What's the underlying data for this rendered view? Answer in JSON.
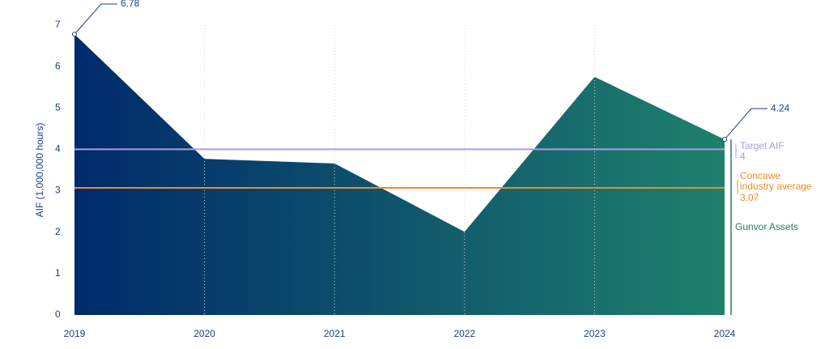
{
  "chart_data": {
    "type": "area",
    "ylabel": "AIF (1,000,000 hours)",
    "categories": [
      "2019",
      "2020",
      "2021",
      "2022",
      "2023",
      "2024"
    ],
    "series": [
      {
        "name": "Gunvor Assets",
        "color": "#2a7d6b",
        "gradient": [
          "#002a6b",
          "#1f806c"
        ],
        "values": [
          6.78,
          3.77,
          3.66,
          2.01,
          5.75,
          4.24
        ],
        "value_labels": [
          "6.78",
          null,
          null,
          null,
          null,
          "4.24"
        ]
      }
    ],
    "reference_lines": [
      {
        "name": "Target AIF",
        "value": 4,
        "color": "#a99fdc"
      },
      {
        "name": "Concawe industry average",
        "value": 3.07,
        "color": "#e88f2a"
      }
    ],
    "ylim": [
      0,
      7
    ],
    "yticks": [
      0,
      1,
      2,
      3,
      4,
      5,
      6,
      7
    ],
    "grid": "x"
  }
}
